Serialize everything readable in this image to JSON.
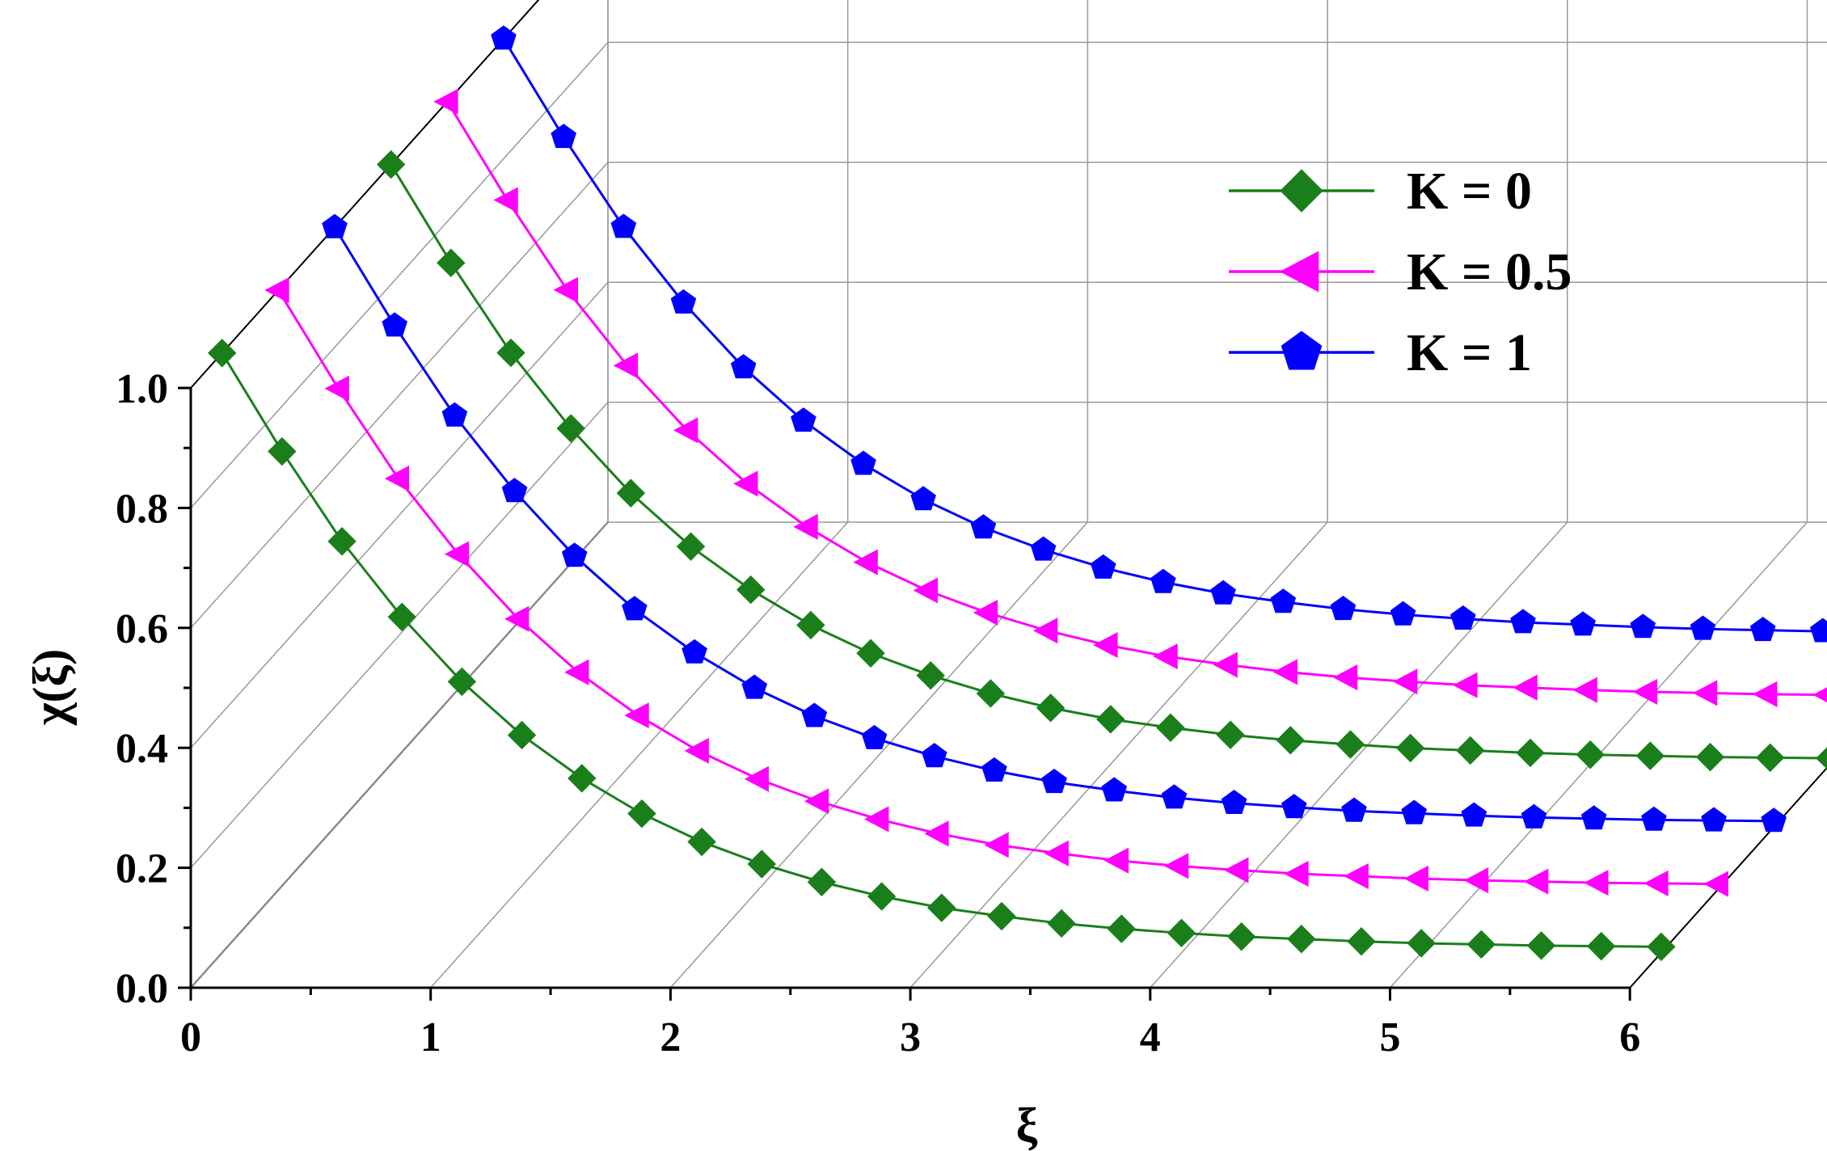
{
  "chart_data": {
    "type": "line",
    "subtype": "3d-waterfall",
    "xlabel": "ξ",
    "ylabel": "χ(ξ)",
    "xlim": [
      0,
      6
    ],
    "ylim": [
      0,
      1
    ],
    "x_ticks": [
      "0",
      "1",
      "2",
      "3",
      "4",
      "5",
      "6"
    ],
    "y_ticks": [
      "0.0",
      "0.2",
      "0.4",
      "0.6",
      "0.8",
      "1.0"
    ],
    "grid": true,
    "legend_position": "top-right",
    "x": [
      0,
      0.25,
      0.5,
      0.75,
      1.0,
      1.25,
      1.5,
      1.75,
      2.0,
      2.25,
      2.5,
      2.75,
      3.0,
      3.25,
      3.5,
      3.75,
      4.0,
      4.25,
      4.5,
      4.75,
      5.0,
      5.25,
      5.5,
      5.75,
      6.0
    ],
    "series": [
      {
        "name": "K = 0",
        "color": "#1a7f1a",
        "marker": "diamond",
        "depth_slot": 0,
        "values": [
          1.0,
          0.836,
          0.686,
          0.56,
          0.452,
          0.363,
          0.291,
          0.232,
          0.185,
          0.148,
          0.118,
          0.094,
          0.075,
          0.061,
          0.049,
          0.04,
          0.033,
          0.027,
          0.023,
          0.019,
          0.016,
          0.014,
          0.012,
          0.011,
          0.01
        ]
      },
      {
        "name": "K = 0.5",
        "color": "#ff00ff",
        "marker": "triangle-left",
        "depth_slot": 1,
        "values": [
          1.0,
          0.836,
          0.686,
          0.56,
          0.452,
          0.363,
          0.291,
          0.232,
          0.185,
          0.148,
          0.118,
          0.094,
          0.075,
          0.061,
          0.049,
          0.04,
          0.033,
          0.027,
          0.023,
          0.019,
          0.016,
          0.014,
          0.012,
          0.011,
          0.01
        ]
      },
      {
        "name": "K = 1",
        "color": "#0000ff",
        "marker": "pentagon",
        "depth_slot": 2,
        "values": [
          1.0,
          0.836,
          0.686,
          0.56,
          0.452,
          0.363,
          0.291,
          0.232,
          0.185,
          0.148,
          0.118,
          0.094,
          0.075,
          0.061,
          0.049,
          0.04,
          0.033,
          0.027,
          0.023,
          0.019,
          0.016,
          0.014,
          0.012,
          0.011,
          0.01
        ]
      }
    ]
  }
}
